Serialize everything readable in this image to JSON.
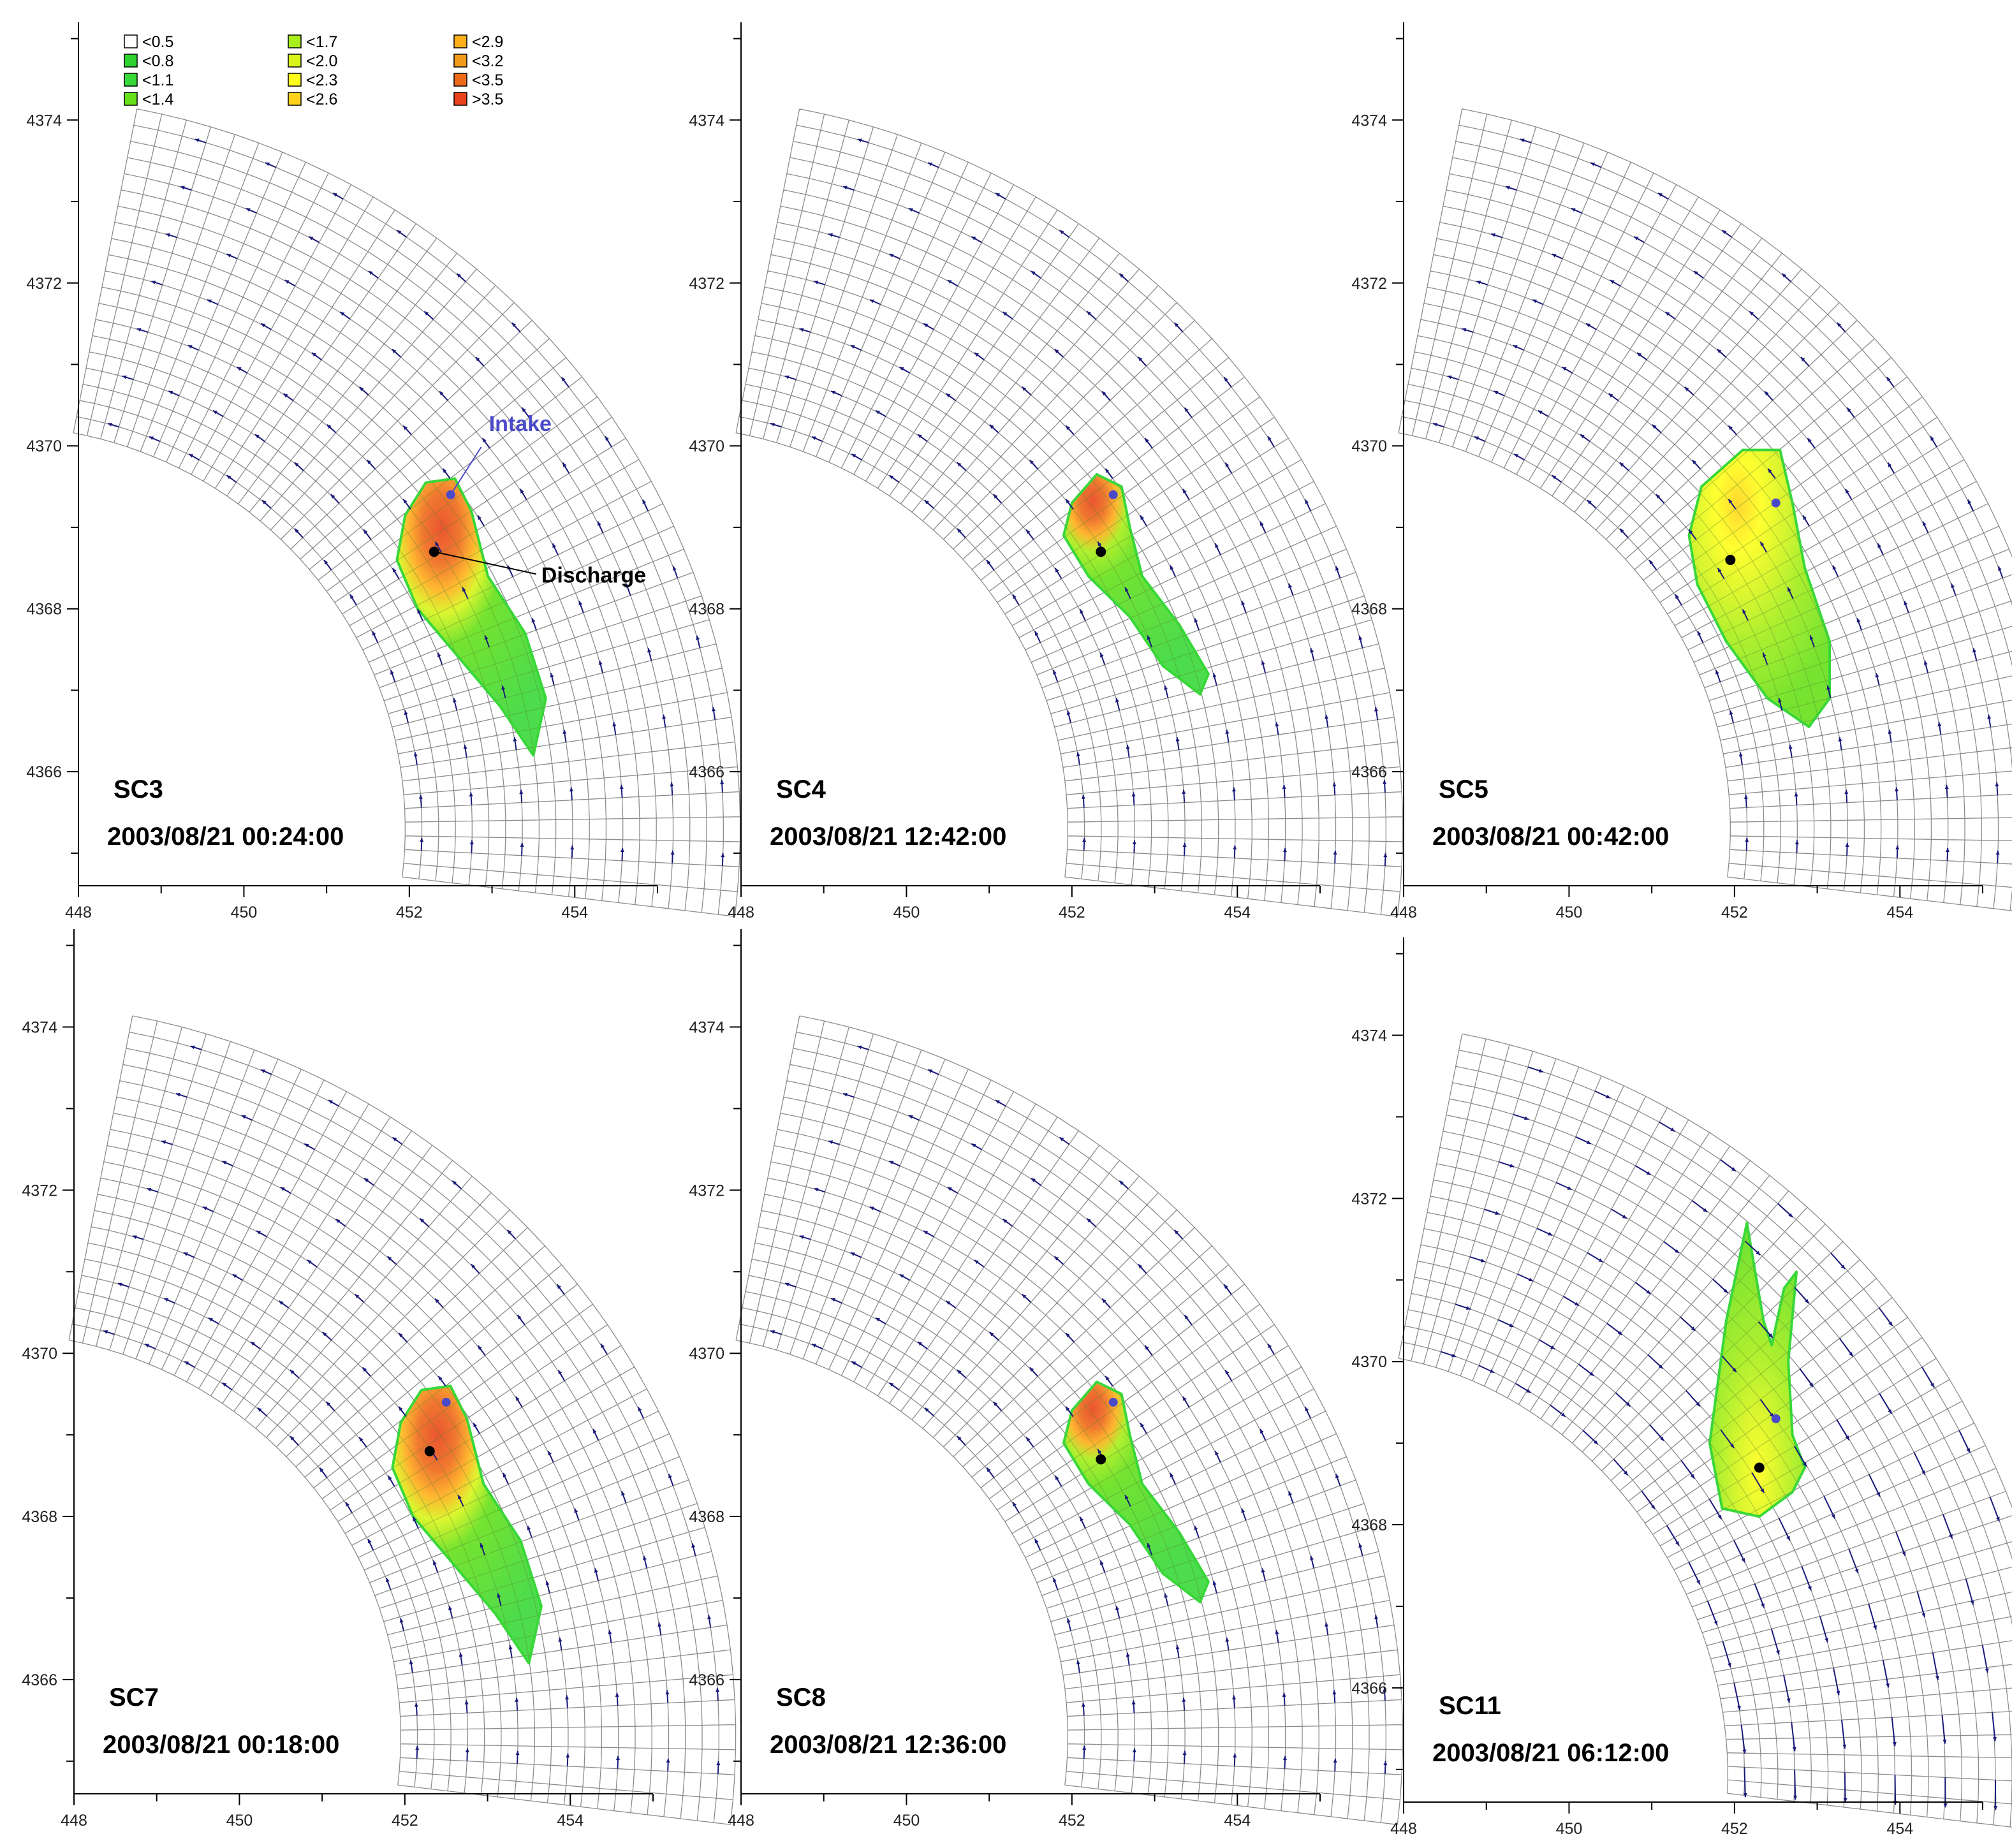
{
  "chart_data": {
    "type": "heatmap",
    "legend": {
      "placement": "top-left",
      "items": [
        {
          "label": "<0.5",
          "color": "#ffffff"
        },
        {
          "label": "<0.8",
          "color": "#2fd12f"
        },
        {
          "label": "<1.1",
          "color": "#39d839"
        },
        {
          "label": "<1.4",
          "color": "#66e01a"
        },
        {
          "label": "<1.7",
          "color": "#a8ee1a"
        },
        {
          "label": "<2.0",
          "color": "#d8f51a"
        },
        {
          "label": "<2.3",
          "color": "#ffff1a"
        },
        {
          "label": "<2.6",
          "color": "#ffd21a"
        },
        {
          "label": "<2.9",
          "color": "#ffae1a"
        },
        {
          "label": "<3.2",
          "color": "#f39a1a"
        },
        {
          "label": "<3.5",
          "color": "#ee6a1a"
        },
        {
          "label": ">3.5",
          "color": "#e8421a"
        }
      ]
    },
    "xlim": [
      448,
      455
    ],
    "ylim": [
      4364.6,
      4375.2
    ],
    "x_ticks": [
      "448",
      "450",
      "452",
      "454"
    ],
    "y_ticks": [
      "4366",
      "4368",
      "4370",
      "4372",
      "4374"
    ],
    "grid": false,
    "mesh_color": "#8c8c8c",
    "vector_color": "#1a1a7a",
    "annotations": [
      {
        "text": "Intake",
        "x": 452.5,
        "y": 4369.4,
        "color": "#4a4ac8"
      },
      {
        "text": "Discharge",
        "x": 452.3,
        "y": 4368.7,
        "color": "#000000"
      }
    ],
    "panels": [
      {
        "title": "SC3",
        "timestamp": "2003/08/21 00:24:00",
        "intake": [
          452.5,
          4369.4
        ],
        "discharge": [
          452.3,
          4368.7
        ],
        "current": "north",
        "plume": "large"
      },
      {
        "title": "SC4",
        "timestamp": "2003/08/21 12:42:00",
        "intake": [
          452.5,
          4369.4
        ],
        "discharge": [
          452.35,
          4368.7
        ],
        "current": "north",
        "plume": "narrow"
      },
      {
        "title": "SC5",
        "timestamp": "2003/08/21 00:42:00",
        "intake": [
          452.5,
          4369.3
        ],
        "discharge": [
          451.95,
          4368.6
        ],
        "current": "north",
        "plume": "warm-wide"
      },
      {
        "title": "SC7",
        "timestamp": "2003/08/21 00:18:00",
        "intake": [
          452.5,
          4369.4
        ],
        "discharge": [
          452.3,
          4368.8
        ],
        "current": "north",
        "plume": "large"
      },
      {
        "title": "SC8",
        "timestamp": "2003/08/21 12:36:00",
        "intake": [
          452.5,
          4369.4
        ],
        "discharge": [
          452.35,
          4368.7
        ],
        "current": "north",
        "plume": "narrow"
      },
      {
        "title": "SC11",
        "timestamp": "2003/08/21 06:12:00",
        "intake": [
          452.5,
          4369.3
        ],
        "discharge": [
          452.3,
          4368.7
        ],
        "current": "south",
        "plume": "north-spread"
      }
    ]
  }
}
